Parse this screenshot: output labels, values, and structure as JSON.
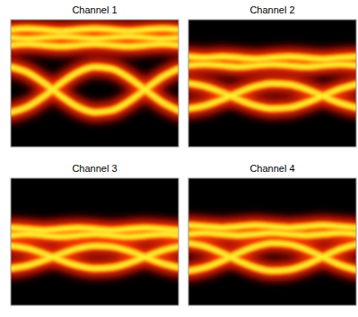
{
  "chart_data": [
    {
      "type": "line",
      "title": "Channel 1",
      "color": "#ffee33",
      "tick_labels": false,
      "xlim": [
        0,
        1
      ],
      "ylim": [
        0,
        1
      ],
      "x": [
        0,
        0.1,
        0.2,
        0.3,
        0.4,
        0.5,
        0.6,
        0.7,
        0.8,
        0.9,
        1
      ],
      "series": [
        {
          "values": [
            0.92,
            0.93,
            0.92,
            0.91,
            0.92,
            0.93,
            0.92,
            0.91,
            0.92,
            0.93,
            0.92
          ]
        },
        {
          "values": [
            0.86,
            0.85,
            0.86,
            0.87,
            0.86,
            0.85,
            0.86,
            0.87,
            0.86,
            0.85,
            0.86
          ]
        },
        {
          "values": [
            0.8,
            0.81,
            0.8,
            0.79,
            0.8,
            0.81,
            0.8,
            0.79,
            0.8,
            0.81,
            0.8
          ]
        },
        {
          "values": [
            0.272,
            0.315,
            0.399,
            0.501,
            0.586,
            0.628,
            0.614,
            0.547,
            0.45,
            0.353,
            0.286
          ]
        },
        {
          "values": [
            0.628,
            0.585,
            0.501,
            0.399,
            0.314,
            0.272,
            0.286,
            0.353,
            0.45,
            0.547,
            0.614
          ]
        }
      ]
    },
    {
      "type": "line",
      "title": "Channel 2",
      "color": "#ffee33",
      "tick_labels": false,
      "xlim": [
        0,
        1
      ],
      "ylim": [
        0,
        1
      ],
      "x": [
        0,
        0.1,
        0.2,
        0.3,
        0.4,
        0.5,
        0.6,
        0.7,
        0.8,
        0.9,
        1
      ],
      "series": [
        {
          "values": [
            0.71,
            0.7,
            0.71,
            0.7,
            0.69,
            0.7,
            0.71,
            0.7,
            0.69,
            0.7,
            0.71
          ]
        },
        {
          "values": [
            0.64,
            0.65,
            0.64,
            0.63,
            0.64,
            0.65,
            0.64,
            0.63,
            0.64,
            0.65,
            0.64
          ]
        },
        {
          "values": [
            0.301,
            0.325,
            0.372,
            0.428,
            0.476,
            0.499,
            0.491,
            0.454,
            0.4,
            0.346,
            0.309
          ]
        },
        {
          "values": [
            0.499,
            0.475,
            0.428,
            0.372,
            0.324,
            0.301,
            0.309,
            0.346,
            0.4,
            0.454,
            0.491
          ]
        }
      ]
    },
    {
      "type": "line",
      "title": "Channel 3",
      "color": "#ffee33",
      "tick_labels": false,
      "xlim": [
        0,
        1
      ],
      "ylim": [
        0,
        1
      ],
      "x": [
        0,
        0.1,
        0.2,
        0.3,
        0.4,
        0.5,
        0.6,
        0.7,
        0.8,
        0.9,
        1
      ],
      "series": [
        {
          "values": [
            0.61,
            0.6,
            0.59,
            0.6,
            0.61,
            0.6,
            0.59,
            0.6,
            0.61,
            0.6,
            0.59
          ]
        },
        {
          "values": [
            0.55,
            0.56,
            0.55,
            0.54,
            0.55,
            0.56,
            0.55,
            0.54,
            0.55,
            0.56,
            0.55
          ]
        },
        {
          "values": [
            0.291,
            0.313,
            0.355,
            0.405,
            0.448,
            0.469,
            0.462,
            0.429,
            0.38,
            0.331,
            0.298
          ]
        },
        {
          "values": [
            0.469,
            0.448,
            0.405,
            0.355,
            0.312,
            0.291,
            0.298,
            0.331,
            0.38,
            0.429,
            0.462
          ]
        }
      ]
    },
    {
      "type": "line",
      "title": "Channel 4",
      "color": "#ffee33",
      "tick_labels": false,
      "xlim": [
        0,
        1
      ],
      "ylim": [
        0,
        1
      ],
      "x": [
        0,
        0.1,
        0.2,
        0.3,
        0.4,
        0.5,
        0.6,
        0.7,
        0.8,
        0.9,
        1
      ],
      "series": [
        {
          "values": [
            0.63,
            0.62,
            0.61,
            0.62,
            0.63,
            0.62,
            0.61,
            0.62,
            0.63,
            0.62,
            0.61
          ]
        },
        {
          "values": [
            0.56,
            0.57,
            0.56,
            0.55,
            0.56,
            0.57,
            0.56,
            0.55,
            0.56,
            0.57,
            0.56
          ]
        },
        {
          "values": [
            0.271,
            0.298,
            0.349,
            0.411,
            0.463,
            0.489,
            0.48,
            0.44,
            0.38,
            0.32,
            0.28
          ]
        },
        {
          "values": [
            0.489,
            0.463,
            0.411,
            0.349,
            0.297,
            0.271,
            0.28,
            0.32,
            0.38,
            0.44,
            0.48
          ]
        }
      ]
    }
  ]
}
